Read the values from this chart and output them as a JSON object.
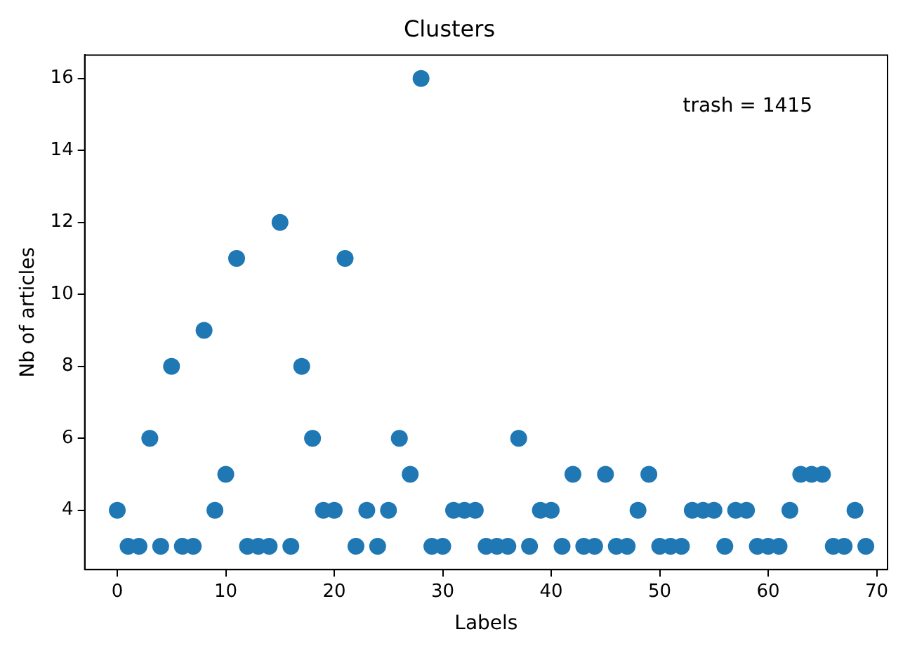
{
  "chart_data": {
    "type": "scatter",
    "title": "Clusters",
    "xlabel": "Labels",
    "ylabel": "Nb of articles",
    "annotations": [
      "trash = 1415"
    ],
    "x": [
      0,
      1,
      2,
      3,
      4,
      5,
      6,
      7,
      8,
      9,
      10,
      11,
      12,
      13,
      14,
      15,
      16,
      17,
      18,
      19,
      20,
      21,
      22,
      23,
      24,
      25,
      26,
      27,
      28,
      29,
      30,
      31,
      32,
      33,
      34,
      35,
      36,
      37,
      38,
      39,
      40,
      41,
      42,
      43,
      44,
      45,
      46,
      47,
      48,
      49,
      50,
      51,
      52,
      53,
      54,
      55,
      56,
      57,
      58,
      59,
      60,
      61,
      62,
      63,
      64,
      65,
      66,
      67,
      68,
      69
    ],
    "series": [
      {
        "color": "#1f77b4",
        "values": [
          4,
          3,
          3,
          6,
          3,
          8,
          3,
          3,
          9,
          4,
          5,
          11,
          3,
          3,
          3,
          12,
          3,
          8,
          6,
          4,
          4,
          11,
          3,
          4,
          3,
          4,
          6,
          5,
          16,
          3,
          3,
          4,
          4,
          4,
          3,
          3,
          3,
          6,
          3,
          4,
          4,
          3,
          5,
          3,
          3,
          5,
          3,
          3,
          4,
          5,
          3,
          3,
          3,
          4,
          4,
          4,
          3,
          4,
          4,
          3,
          3,
          3,
          4,
          5,
          5,
          5,
          3,
          3,
          4,
          3
        ]
      }
    ],
    "xlim": [
      -3,
      71
    ],
    "ylim": [
      2.35,
      16.65
    ],
    "xticks": [
      0,
      10,
      20,
      30,
      40,
      50,
      60,
      70
    ],
    "yticks": [
      4,
      6,
      8,
      10,
      12,
      14,
      16
    ],
    "marker": "circle",
    "grid": false,
    "legend": false
  }
}
